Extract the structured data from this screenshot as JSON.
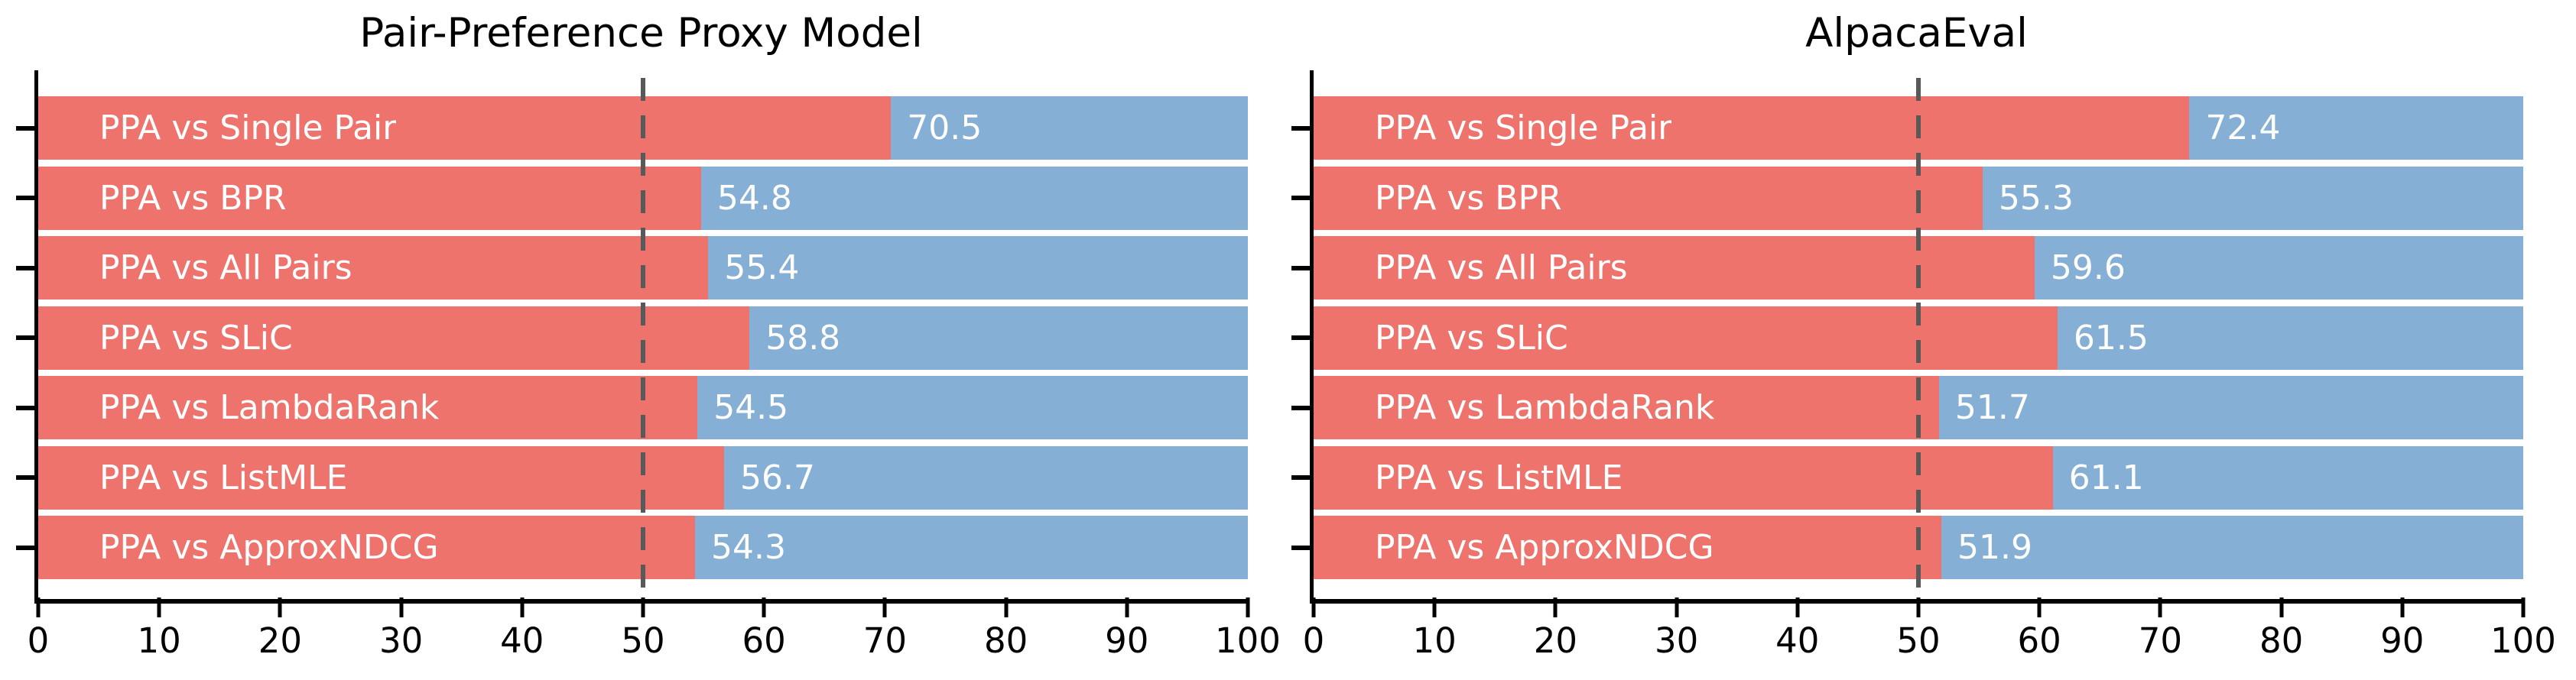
{
  "figure": {
    "background": "#ffffff",
    "text_color": "#000000"
  },
  "chart_data": [
    {
      "type": "bar",
      "orientation": "horizontal",
      "title": "Pair-Preference Proxy Model",
      "categories": [
        "PPA vs Single Pair",
        "PPA vs BPR",
        "PPA vs All Pairs",
        "PPA vs SLiC",
        "PPA vs LambdaRank",
        "PPA vs ListMLE",
        "PPA vs ApproxNDCG"
      ],
      "values": [
        70.5,
        54.8,
        55.4,
        58.8,
        54.5,
        56.7,
        54.3
      ],
      "bar_total": 100,
      "xlim": [
        0,
        100
      ],
      "x_ticks": [
        0,
        10,
        20,
        30,
        40,
        50,
        60,
        70,
        80,
        90,
        100
      ],
      "reference_line_x": 50,
      "grid": false,
      "legend": false,
      "colors": {
        "win_segment": "#ee736c",
        "remainder_segment": "#85afd4",
        "reference_line": "#595959",
        "bar_text": "#ffffff",
        "axis": "#000000"
      }
    },
    {
      "type": "bar",
      "orientation": "horizontal",
      "title": "AlpacaEval",
      "categories": [
        "PPA vs Single Pair",
        "PPA vs BPR",
        "PPA vs All Pairs",
        "PPA vs SLiC",
        "PPA vs LambdaRank",
        "PPA vs ListMLE",
        "PPA vs ApproxNDCG"
      ],
      "values": [
        72.4,
        55.3,
        59.6,
        61.5,
        51.7,
        61.1,
        51.9
      ],
      "bar_total": 100,
      "xlim": [
        0,
        100
      ],
      "x_ticks": [
        0,
        10,
        20,
        30,
        40,
        50,
        60,
        70,
        80,
        90,
        100
      ],
      "reference_line_x": 50,
      "grid": false,
      "legend": false,
      "colors": {
        "win_segment": "#ee736c",
        "remainder_segment": "#85afd4",
        "reference_line": "#595959",
        "bar_text": "#ffffff",
        "axis": "#000000"
      }
    }
  ]
}
